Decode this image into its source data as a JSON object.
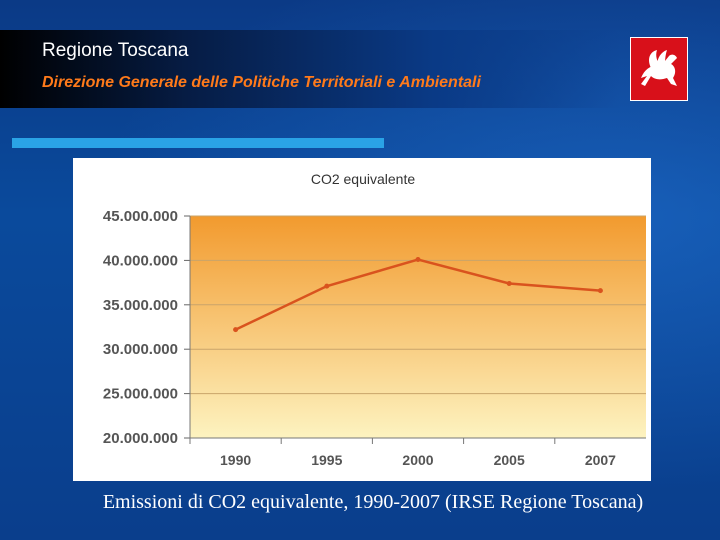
{
  "header": {
    "title": "Regione Toscana",
    "subtitle": "Direzione Generale delle Politiche Territoriali e Ambientali"
  },
  "logo": {
    "icon": "pegasus-logo-icon",
    "color": "#d8101a"
  },
  "caption": "Emissioni di CO2 equivalente, 1990-2007 (IRSE Regione Toscana)",
  "chart_data": {
    "type": "line",
    "title": "CO2 equivalente",
    "categories": [
      "1990",
      "1995",
      "2000",
      "2005",
      "2007"
    ],
    "values": [
      32200000,
      37100000,
      40100000,
      37400000,
      36600000
    ],
    "ylim": [
      20000000,
      45000000
    ],
    "yticks": [
      20000000,
      25000000,
      30000000,
      35000000,
      40000000,
      45000000
    ],
    "ytick_labels": [
      "20.000.000",
      "25.000.000",
      "30.000.000",
      "35.000.000",
      "40.000.000",
      "45.000.000"
    ],
    "xlabel": "",
    "ylabel": "",
    "grid": true,
    "line_color": "#d9531e",
    "bg_top_color": "#f29a2e",
    "bg_bottom_color": "#fdf3c0"
  }
}
